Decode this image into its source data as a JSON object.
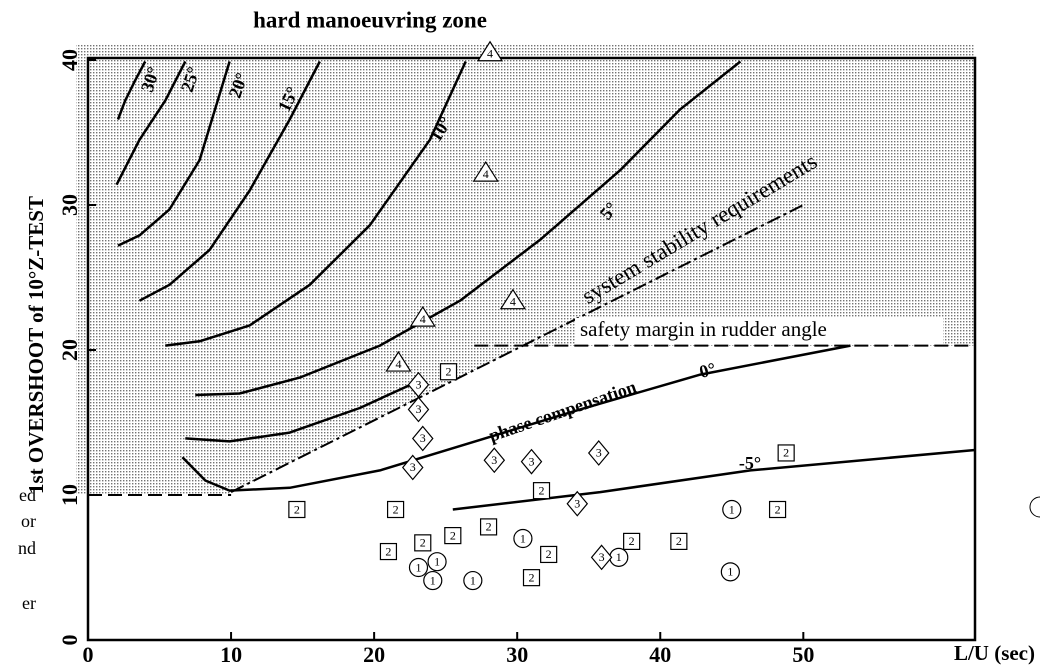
{
  "chart_data": {
    "type": "scatter",
    "title": "hard manoeuvring zone",
    "y_label": "1st OVERSHOOT of 10°Z-TEST",
    "x_label": "L/U (sec)",
    "xlim": [
      0,
      62
    ],
    "ylim": [
      0,
      40
    ],
    "xticks": [
      0,
      10,
      20,
      30,
      40,
      50
    ],
    "yticks": [
      0,
      10,
      20,
      30,
      40
    ],
    "curves": [
      {
        "name": "30°",
        "x": [
          2.1,
          2.6,
          3.3,
          4.0
        ],
        "values": [
          35.9,
          37.2,
          38.6,
          39.9
        ]
      },
      {
        "name": "25°",
        "x": [
          2.0,
          3.6,
          5.4,
          6.8
        ],
        "values": [
          31.4,
          34.5,
          37.2,
          39.9
        ]
      },
      {
        "name": "20°",
        "x": [
          2.1,
          3.6,
          5.7,
          7.8,
          9.9
        ],
        "values": [
          27.2,
          27.9,
          29.7,
          33.1,
          39.9
        ]
      },
      {
        "name": "15°",
        "x": [
          3.6,
          5.7,
          8.5,
          11.3,
          14.1,
          16.2
        ],
        "values": [
          23.4,
          24.5,
          26.9,
          31.0,
          35.9,
          39.9
        ]
      },
      {
        "name": "10°",
        "x": [
          5.4,
          7.8,
          11.3,
          15.5,
          19.7,
          23.9,
          26.4
        ],
        "values": [
          20.3,
          20.6,
          21.7,
          24.5,
          28.6,
          34.5,
          39.9
        ]
      },
      {
        "name": "5°",
        "x": [
          7.5,
          10.6,
          14.8,
          20.4,
          26.0,
          31.6,
          37.2,
          41.4,
          45.6
        ],
        "values": [
          16.9,
          17.0,
          18.1,
          20.3,
          23.4,
          27.6,
          32.4,
          36.6,
          39.9
        ]
      },
      {
        "name": null,
        "x": [
          6.8,
          9.9,
          14.1,
          19.0,
          23.2
        ],
        "values": [
          13.9,
          13.7,
          14.3,
          16.0,
          17.9
        ]
      },
      {
        "name": "0°",
        "x": [
          6.6,
          8.2,
          9.9,
          14.1,
          20.4,
          27.4,
          34.4,
          42.8,
          53.3
        ],
        "values": [
          12.6,
          11.0,
          10.3,
          10.5,
          11.7,
          13.8,
          15.9,
          18.3,
          20.3
        ]
      },
      {
        "name": "-5°",
        "x": [
          25.5,
          35.8,
          46.3,
          62
        ],
        "values": [
          9.0,
          10.2,
          11.7,
          13.1
        ]
      }
    ],
    "boundaries": [
      {
        "style": "dashed",
        "x": [
          0,
          10
        ],
        "values": [
          10,
          10
        ]
      },
      {
        "name": "system stability requirements",
        "style": "dash-dot",
        "x": [
          10,
          50
        ],
        "values": [
          10.2,
          30
        ]
      },
      {
        "name": "safety margin in rudder angle",
        "style": "dashed",
        "x": [
          27,
          62
        ],
        "values": [
          20.3,
          20.3
        ]
      }
    ],
    "annotation": "phase compensation",
    "series": [
      {
        "name": "1",
        "marker": "circle",
        "x": [
          45,
          30.4,
          23.1,
          24.4,
          24.1,
          26.9,
          37.1,
          44.9
        ],
        "values": [
          9.0,
          7.0,
          5.0,
          5.4,
          4.1,
          4.1,
          5.7,
          4.7
        ]
      },
      {
        "name": "2",
        "marker": "square",
        "x": [
          25.2,
          21.5,
          14.6,
          31.7,
          48.8,
          48.2,
          28.0,
          25.5,
          23.4,
          21.0,
          32.2,
          38.0,
          41.3,
          31.0
        ],
        "values": [
          18.5,
          9.0,
          9.0,
          10.3,
          12.9,
          9.0,
          7.8,
          7.2,
          6.7,
          6.1,
          5.9,
          6.8,
          6.8,
          4.3
        ]
      },
      {
        "name": "3",
        "marker": "diamond",
        "x": [
          23.1,
          23.1,
          23.4,
          22.7,
          28.4,
          31.0,
          35.7,
          34.2,
          35.9
        ],
        "values": [
          17.6,
          15.9,
          13.9,
          11.9,
          12.4,
          12.3,
          12.9,
          9.4,
          5.7
        ]
      },
      {
        "name": "4",
        "marker": "triangle",
        "x": [
          28.1,
          27.8,
          23.4,
          21.7,
          29.7
        ],
        "values": [
          40.5,
          32.2,
          22.2,
          19.1,
          23.4
        ]
      }
    ],
    "shading": "#d4d4d4",
    "margin_fragments": [
      "ed",
      "or",
      "nd",
      "er"
    ]
  }
}
